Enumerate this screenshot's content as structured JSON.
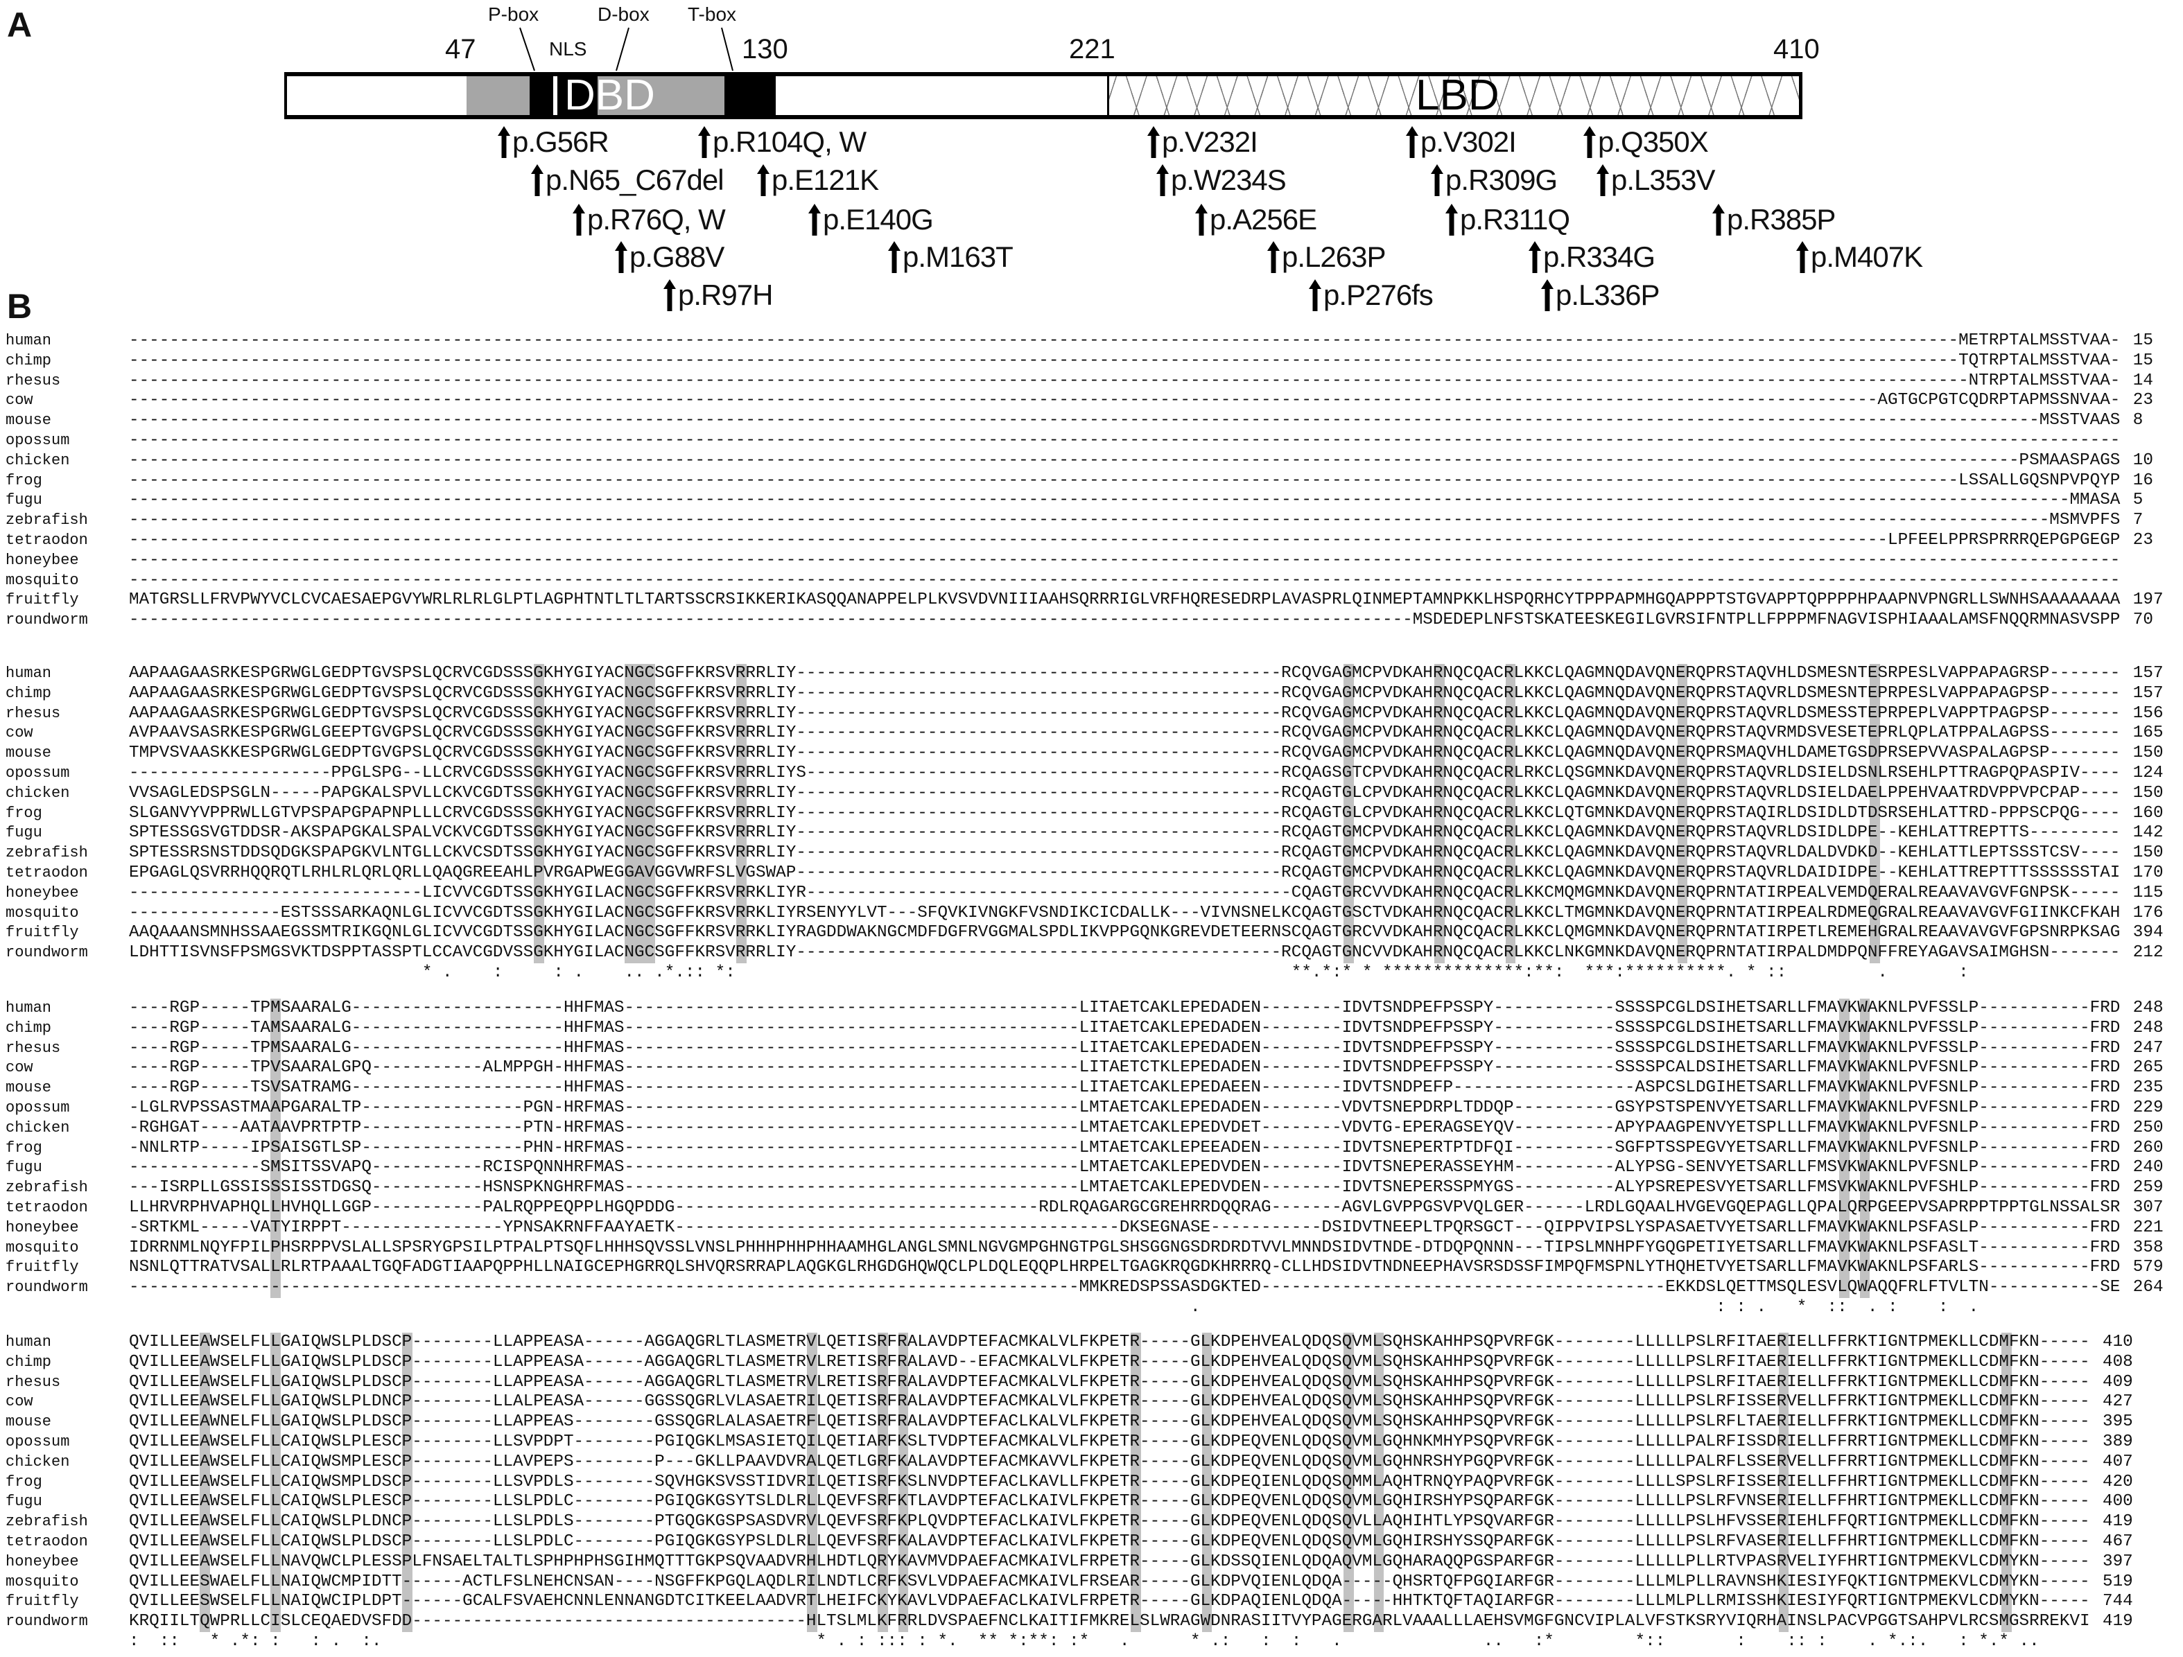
{
  "panel_a": {
    "letter": "A",
    "positions": [
      "47",
      "130",
      "221",
      "410"
    ],
    "boxes": [
      "P-box",
      "D-box",
      "T-box"
    ],
    "nls": "NLS",
    "dbd": "DBD",
    "lbd": "LBD",
    "mutations": [
      "p.G56R",
      "p.R104Q, W",
      "p.V232I",
      "p.V302I",
      "p.Q350X",
      "p.N65_C67del",
      "p.E121K",
      "p.W234S",
      "p.R309G",
      "p.L353V",
      "p.R76Q, W",
      "p.E140G",
      "p.A256E",
      "p.R311Q",
      "p.R385P",
      "p.G88V",
      "p.M163T",
      "p.L263P",
      "p.R334G",
      "p.M407K",
      "p.R97H",
      "p.P276fs",
      "p.L336P"
    ],
    "colors": {
      "dbd_gray": "#a6a6a6",
      "box_black": "#000000",
      "highlight": "#c2c2c2"
    }
  },
  "panel_b": {
    "letter": "B",
    "species": [
      "human",
      "chimp",
      "rhesus",
      "cow",
      "mouse",
      "opossum",
      "chicken",
      "frog",
      "fugu",
      "zebrafish",
      "tetraodon",
      "honeybee",
      "mosquito",
      "fruitfly",
      "roundworm"
    ],
    "blocks": [
      {
        "seqs": [
          "-------------------------------------------------------------------------------------------------------------------------------------------------------------------------------------METRPTALMSSTVAA-",
          "-------------------------------------------------------------------------------------------------------------------------------------------------------------------------------------TQTRPTALMSSTVAA-",
          "--------------------------------------------------------------------------------------------------------------------------------------------------------------------------------------NTRPTALMSSTVAA-",
          "-----------------------------------------------------------------------------------------------------------------------------------------------------------------------------AGTGCPGTCQDRPTAPMSSNVAA-",
          "---------------------------------------------------------------------------------------------------------------------------------------------------------------------------------------------MSSTVAAS",
          "-----------------------------------------------------------------------------------------------------------------------------------------------------------------------------------------------------",
          "-------------------------------------------------------------------------------------------------------------------------------------------------------------------------------------------PSMAASPAGS",
          "-------------------------------------------------------------------------------------------------------------------------------------------------------------------------------------LSSALLGQSNPVPQYP",
          "------------------------------------------------------------------------------------------------------------------------------------------------------------------------------------------------MMASA",
          "----------------------------------------------------------------------------------------------------------------------------------------------------------------------------------------------MSMVPFS",
          "------------------------------------------------------------------------------------------------------------------------------------------------------------------------------LPFEELPPRSPRRRQEPGPGEGP",
          "-----------------------------------------------------------------------------------------------------------------------------------------------------------------------------------------------------",
          "-----------------------------------------------------------------------------------------------------------------------------------------------------------------------------------------------------",
          "MATGRSLLFRVPWYVCLCVCAESAEPGVYWRLRLRLGLPTLAGPHTNTLTLTARTSSCRSIKKERIKASQQANAPPELPLKVSVDVNIIIAAHSQRRRIGLVRFHQRESEDRPLAVASPRLQINMEPTAMNPKKLHSPQRHCYTPPPAPMHGQAPPPTSTGVAPPTQPPPPHPAAPNVPNGRLLSWNHSAAAAAAAA",
          "-------------------------------------------------------------------------------------------------------------------------------MSDEDEPLNFSTSKATEESKEGILGVRSIFNTPLLFPPPMFNAGVISPHIAAALAMSFNQQRMNASVSPP"
        ],
        "ends": [
          "15",
          "15",
          "14",
          "23",
          "8",
          "",
          "10",
          "16",
          "5",
          "7",
          "23",
          "",
          "",
          "197",
          "70"
        ],
        "conservation": "",
        "highlight_columns": []
      },
      {
        "seqs": [
          "AAPAAGAASRKESPGRWGLGEDPTGVSPSLQCRVCGDSSSGKHYGIYACNGCSGFFKRSVRRRLIY------------------------------------------------RCQVGAGMCPVDKAHRNQCQACRLKKCLQAGMNQDAVQNERQPRSTAQVHLDSMESNTESRPESLVAPPAPAGRSP-------",
          "AAPAAGAASRKESPGRWGLGEDPTGVSPSLQCRVCGDSSSGKHYGIYACNGCSGFFKRSVRRRLIY------------------------------------------------RCQVGAGMCPVDKAHRNQCQACRLKKCLQAGMNQDAVQNERQPRSTAQVRLDSMESNTEPRPESLVAPPAPAGPSP-------",
          "AAPAAGAASRKESPGRWGLGEDPTGVSPSLQCRVCGDSSSGKHYGIYACNGCSGFFKRSVRRRLIY------------------------------------------------RCQVGAGMCPVDKAHRNQCQACRLKKCLQAGMNQDAVQNERQPRSTAQVRLDSMESSTEPRPEPLVAPPTPAGPSP-------",
          "AVPAAVSASRKESPGRWGLGEEPTGVGPSLQCRVCGDSSSGKHYGIYACNGCSGFFKRSVRRRLIY------------------------------------------------RCQVGAGMCPVDKAHRNQCQACRLKKCLQAGMNQDAVQNERQPRSTAQVRMDSVESETEPRLQPLATPPALAGPSS-------",
          "TMPVSVAASKKESPGRWGLGEDPTGVGPSLQCRVCGDSSSGKHYGIYACNGCSGFFKRSVRRRLIY------------------------------------------------RCQVGAGMCPVDKAHRNQCQACRLKKCLQAGMNQDAVQNERQPRSMAQVHLDAMETGSDPRSEPVVASPALAGPSP-------",
          "--------------------PPGLSPG--LLCRVCGDSSSGKHYGIYACNGCSGFFKRSVRRRLIYS-----------------------------------------------RCQAGSGTCPVDKAHRNQCQACRLRKCLQSGMNKDAVQNERQPRSTAQVRLDSIELDSNLRSEHLPTTRAGPQPASPIV----",
          "VVSAGLEDSPSGLN-----PAPGKALSPVLLCKVCGDTSSGKHYGIYACNGCSGFFKRSVRRRLIY------------------------------------------------RCQAGTGLCPVDKAHRNQCQACRLKKCLQAGMNKDAVQNERQPRSTAQVRLDSIELDAELPPEHVAATRDVPPVPCPAP----",
          "SLGANVYVPPRWLLGTVPSPAPGPAPNPLLLCRVCGDSSSGKHYGIYACNGCSGFFKRSVRRRLIY------------------------------------------------RCQAGTGLCPVDKAHRNQCQACRLKKCLQTGMNKDAVQNERQPRSTAQIRLDSIDLDTDSRSEHLATTRD-PPPSCPQG----",
          "SPTESSGSVGTDDSR-AKSPAPGKALSPALVCKVCGDTSSGKHYGIYACNGCSGFFKRSVRRRLIY------------------------------------------------RCQAGTGMCPVDKAHRNQCQACRLKKCLQAGMNKDAVQNERQPRSTAQVRLDSIDLDPE--KEHLATTREPTTS---------",
          "SPTESSRSNSTDDSQDGKSPAPGKVLNTGLLCKVCSDTSSGKHYGIYACNGCSGFFKRSVRRRLIY------------------------------------------------RCQAGTGMCPVDKAHRNQCQACRLKKCLQAGMNKDAVQNERQPRSTAQVRLDALDVDKD--KEHLATTLEPTSSSTCSV----",
          "EPGAGLQSVRRHQQRQTLRHLRLQRLQRLLQAQGREEAHLPVRGAPWEGGAVGGVWRFSLVGSWAP------------------------------------------------RCQAGTGMCPVDKAHRNQCQACRLKKCLQAGMNKDAVQNERQPRSTAQVRLDAIDIDPE--KEHLATTREPTTTSSSSSSTAI",
          "-----------------------------LICVVCGDTSSGKHYGILACNGCSGFFKRSVRRKLIYR------------------------------------------------CQAGTGRCVVDKAHRNQCQACRLKKCMQMGMNKDAVQNERQPRNTATIRPEALVEMDQERALREAAVAVGVFGNPSK-----",
          "---------------ESTSSSARKAQNLGLICVVCGDTSSGKHYGILACNGCSGFFKRSVRRKLIYRSENYYLVT---SFQVKIVNGKFVSNDIKCICDALLK---VIVNSNELKCQAGTGSCTVDKAHRNQCQACRLKKCLTMGMNKDAVQNERQPRNTATIRPEALRDMEQGRALREAAVAVGVFGIINKCFKAH",
          "AAQAAANSMNHSSAAEGSSMTRIKGQNLGLICVVCGDTSSGKHYGILACNGCSGFFKRSVRRKLIYRAGDDWAKNGCMDFDGFRVGGMALSPDLIKVPPGQNKGREVDETEERNSCQAGTGRCVVDKAHRNQCQACRLKKCLQMGMNKDAVQNERQPRNTATIRPETLREMEHGRALREAAVAVGVFGPSNRPKSAG",
          "LDHTTISVNSFPSMGSVKTDSPPTASSPTLCCAVCGDVSSGKHYGILACNGCSGFFKRSVRRRLIY------------------------------------------------RCQAGTGNCVVDKAHRNQCQACRLKKCLNKGMNKDAVQNERQPRNTATIRPALDMDPQNFFREYAGAVSAIMGHSN-------"
        ],
        "ends": [
          "157",
          "157",
          "156",
          "165",
          "150",
          "124",
          "150",
          "160",
          "142",
          "150",
          "170",
          "115",
          "176",
          "394",
          "212"
        ],
        "conservation": "                             * .    :     : .    .. .*.:: *:                                                       **.*:* * **************:**:  ***:**********. * ::         .       :",
        "highlight_columns": [
          41,
          50,
          51,
          52,
          61,
          121,
          130,
          137,
          154,
          173
        ]
      },
      {
        "seqs": [
          "----RGP-----TPMSAARALG---------------------HHFMAS---------------------------------------------LITAETCAKLEPEDADEN--------IDVTSNDPEFPSSPY------------SSSSPCGLDSIHETSARLLFMAVKWAKNLPVFSSLP-----------FRD",
          "----RGP-----TAMSAARALG---------------------HHFMAS---------------------------------------------LITAETCAKLEPEDADEN--------IDVTSNDPEFPSSPY------------SSSSPCGLDSIHETSARLLFMAVKWAKNLPVFSSLP-----------FRD",
          "----RGP-----TPMSAARALG---------------------HHFMAS---------------------------------------------LITAETCAKLEPEDADEN--------IDVTSNDPEFPSSPY------------SSSSPCGLDSIHETSARLLFMAVKWAKNLPVFSSLP-----------FRD",
          "----RGP-----TPVSAARALGPQ-----------ALMPPGH-HHFMAS---------------------------------------------LITAETCTKLEPEDADEN--------IDVTSNDPEFPSSPY------------SSSSPCALDSIHETSARLLFMAVKWAKNLPVFSNLP-----------FRD",
          "----RGP-----TSVSATRAMG---------------------HHFMAS---------------------------------------------LITAETCAKLEPEDAEEN--------IDVTSNDPEFP------------------ASPCSLDGIHETSARLLFMAVKWAKNLPVFSNLP-----------FRD",
          "-LGLRVPSSASTMAAPGARALTP----------------PGN-HRFMAS---------------------------------------------LMTAETCAKLEPEDADEN--------VDVTSNEPDRPLTDDQP----------GSYPSTSPENVYETSARLLFMAVKWAKNLPVFSNLP-----------FRD",
          "-RGHGAT----AATAAVPRTPTP----------------PTN-HRFMAS---------------------------------------------LMTAETCAKLEPEDVDET--------VDVTG-EPERAGSEYQV----------APYPAAGPENVYETSPLLLFMAVKWAKNLPVFSNLP-----------FRD",
          "-NNLRTP-----IPSAISGTLSP----------------PHN-HRFMAS---------------------------------------------LMTAETCAKLEPEEADEN--------IDVTSNEPERTPTDFQI----------SGFPTSSPEGVYETSARLLFMAVKWAKNLPVFSNLP-----------FRD",
          "-------------SMSITSSVAPQ-----------RCISPQNNHRFMAS---------------------------------------------LMTAETCAKLEPEDVDEN--------IDVTSNEPERASSEYHM----------ALYPSG-SENVYETSARLLFMSVKWAKNLPVFSNLP-----------FRD",
          "---ISRPLLGSSISSSISSTDGSQ-----------HSNSPKNGHRFMAS---------------------------------------------LMTAETCAKLEPEDVDEN--------IDVTSNEPERSSPMYGS----------ALYPSREPESVYETSARLLFMSVKWAKNLPVFSHLP-----------FRD",
          "LLHRVRPHVAPHQLLHVHQLLGGP-----------PALRQPPEQPPLHGQPDDG------------------------------------RDLRQAGARGCGREHRRDQQRAG-------AGVLGVPPGSVPVQLGER------LRDLGQAALHVGEVGQEPAGLLQPALQRPGEEPVSAPRPPTPPTGLNSSALSR",
          "-SRTKML-----VATYIRPPT----------------YPNSAKRNFFAAYAETK--------------------------------------------DKSEGNASE-----------DSIDVTNEEPLTPQRSGCT---QIPPVIPSLYSPASAETVYETSARLLFMAVKWAKNLPSFASLP-----------FRD",
          "IDRRNMLNQYFPILPHSRPPVSLALLSPSRYGPSILPTPALPTSQFLHHHSQVSSLVNSLPHHHPHHPHHAAMHGLANGLSMNLNGVGMPGHNGTPGLSHSGGNGSDRDRDTVVLMNNDSIDVTNDE-DTDQPQNNN---TIPSLMNHPFYGQGPETIYETSARLLFMAVKWAKNLPSFASLT-----------FRD",
          "NSNLQTTRATVSALLRLRTPAAALTGQFADGTIAAPQPPHLLNAIGCEPHGRRQLSHVQRSRRAPLAQGKGLRHGDGHQWQCLPLDQLEQQPLHRPELTGAGKRQGDKHRRRQ-CLLHDSIDVTNDNEEPHAVSRSDSSFIMPQFMSPNLYTHQHETVYETSARLLFMAVKWAKNLPSFARLS-----------FRD",
          "----------------------------------------------------------------------------------------------MMKREDSPSSASDGKTED----------------------------------------EKKDSLQETTMSQLESVLQWAQQFRLFTVLTN-----------SE"
        ],
        "ends": [
          "248",
          "248",
          "247",
          "265",
          "235",
          "229",
          "250",
          "260",
          "240",
          "259",
          "307",
          "221",
          "358",
          "579",
          "264"
        ],
        "conservation": "                                                                                                         .                                                   : : .   *  ::  . :    :  .",
        "highlight_columns": [
          15,
          170,
          172
        ]
      },
      {
        "seqs": [
          "QVILLEEAWSELFLLGAIQWSLPLDSCP--------LLAPPEASA------AGGAQGRLTLASMETRVLQETISRFRALAVDPTEFACMKALVLFKPETR-----GLKDPEHVEALQDQSQVMLSQHSKAHHPSQPVRFGK--------LLLLLPSLRFITAERIELLFFRKTIGNTPMEKLLCDMFKN-----",
          "QVILLEEAWSELFLLGAIQWSLPLDSCP--------LLAPPEASA------AGGAQGRLTLASMETRVLRETISRFRALAVD--EFACMKALVLFKPETR-----GLKDPEHVEALQDQSQVMLSQHSKAHHPSQPVRFGK--------LLLLLPSLRFITAERIELLFFRKTIGNTPMEKLLCDMFKN-----",
          "QVILLEEAWSELFLLGAIQWSLPLDSCP--------LLAPPEASA------AGGAQGRLTLASMETRVLRETISRFRALAVDPTEFACMKALVLFKPETR-----GLKDPEHVEALQDQSQVMLSQHSKAHHPSQPVRFGK--------LLLLLPSLRFITAERIELLFFRKTIGNTPMEKLLCDMFKN-----",
          "QVILLEEAWSELFLLGAIQWSLPLDNCP--------LLALPEASA------GGSSQGRLVLASAETRILQETISRFRALAVDPTEFACMKALVLFKPETR-----GLKDPEHVEALQDQSQVMLSQHSKAHHPSQPVRFGK--------LLLLLPSLRFISSERVELLFFRKTIGNTPMEKLLCDMFKN-----",
          "QVILLEEAWNELFLLGAIQWSLPLDSCP--------LLAPPEAS--------GSSQGRLALASAETRFLQETISRFRALAVDPTEFACLKALVLFKPETR-----GLKDPEHVEALQDQSQVMLSQHSKAHHPSQPVRFGK--------LLLLLPSLRFLTAERIELLFFRKTIGNTPMEKLLCDMFKN-----",
          "QVILLEEAWSELFLLCAIQWSLPLESCP--------LLSVPDPT--------PGIQGKLMSASIETQILQETIARFKSLTVDPTEFACMKALVLFKPETR-----GLKDPEQVENLQDQSQVMLGQHNKMHYPSQPVRFGK--------LLLLLPALRFISSDRIELLFFRRTIGNTPMEKLLCDMFKN-----",
          "QVILLEEAWSELFLLCAIQWSMPLESCP--------LLAVPEPS--------P---GKLLPAAVDVRALQETLGRFKALAVDPTEFACMKAVVLFKPETR-----GLKDPEQVENLQDQSQVMLGQHNRSHYPGQPVRFGK--------LLLLLPALRFLSSERVELLFFRRTIGNTPMEKLLCDMFKN-----",
          "QVILLEEAWSELFLLCAIQWSMPLDSCP--------LLSVPDLS--------SQVHGKSVSSTIDVRILQETISRFKSLNVDPTEFACLKAVLLFKPETR-----GLKDPEQIENLQDQSQMMLAQHTRNQYPAQPVRFGK--------LLLLSPSLRFISSERIELLFFHRTIGNTPMEKLLCDMFKN-----",
          "QVILLEEAWSELFLLCAIQWSLPLESCP--------LLSLPDLC--------PGIQGKGSYTSLDLRLLQEVFSRFKTLAVDPTEFACLKAIVLFKPETR-----GLKDPEQVENLQDQSQVMLGQHIRSHYPSQPARFGK--------LLLLLPSLRFVNSERIELLFFHRTIGNTPMEKLLCDMFKN-----",
          "QVILLEEAWSELFLLCAIQWSLPLDNCP--------LLSLPDLS--------PTGQGKGSPSASDVRVLQEVFSRFKPLQVDPTEFACLKAIVLFKPETR-----GLKDPEQVENLQDQSQVLLAQHIHTLYPSQVARFGR--------LLLLLPSLHFVSSERIEHLFFQRTIGNTPMEKLLCDMFKN-----",
          "QVILLEEAWSELFLLCAIQWSLPLDSCP--------LLSLPDLC--------PGIQGKGSYPSLDLRLLQEVFSRFKALAVDPTEFACLKAIVLFKPETR-----GLKDPEQVENLQDQSQVMLGQHIRSHYSSQPARFGK--------LLLLLPSLRFVASERIELLFFHRTIGNTPMEKLLCDMFKN-----",
          "QVILLEEAWSELFLLNAVQWCLPLESSPLFNSAELTALTLSPHPHPHSGIHMQTTTGKPSQVAADVRHLHDTLQRYKAVMVDPAEFACMKAIVLFRPETR-----GLKDSSQIENLQDQAQVMLGQHARAQQPGSPARFGR--------LLLLLPLLRTVPASRVELIYFHRTIGNTPMEKVLCDMYKN-----",
          "QVILLEESWAELFLLNAIQWCMPIDTT------ACTLFSLNEHCNSAN----NSGFFKPGQLAQDLRILNDTLCRFKSVLVDPAEFACMKAIVLFRSEAR-----GLKDPVQIENLQDQA-----QHSRTQFPGQIARFGR--------LLLMLPLLRAVNSHKIESIYFQKTIGNTPMEKVLCDMYKN-----",
          "QVILLEESWSELFLLNAIQWCIPLDPT------GCALFSVAEHCNNLENNANGDTCITKEELAADVRTLHEIFCKYKAVLVDPAEFACLKAIVLFRPETR-----GLKDPAQIENLQDQA-----HHTKTQFTAQIARFGR--------LLLMLPLLRMISSHKIESIYFQRTIGNTPMEKVLCDMYKN-----",
          "KRQIILTQWPRLLCISLCEQAEDVSFDD---------------------------------------HLTSLMLKFRRLDVSPAEFNCLKAITIFMKRELSLWRAGWDNRASIITVYPAGERGARLVAAALLLAEHSVMGFGNCVIPLALVFSTKSRYVIQRHAINSLPACVPGGTSAHPVLRCSMGSRREKVI"
        ],
        "ends": [
          "410",
          "408",
          "409",
          "427",
          "395",
          "389",
          "407",
          "420",
          "400",
          "419",
          "467",
          "397",
          "519",
          "744",
          "419"
        ],
        "conservation": ":  ::   * .*: :   : .  :.                                           * . : ::: : *.  ** *:**: :*   .      * .:   :  :   .              ..   :*        *::       :    :: :    . *.:.   : *.* ..",
        "highlight_columns": [
          8,
          15,
          28,
          68,
          75,
          77,
          100,
          107,
          121,
          124,
          164,
          186
        ]
      }
    ]
  }
}
